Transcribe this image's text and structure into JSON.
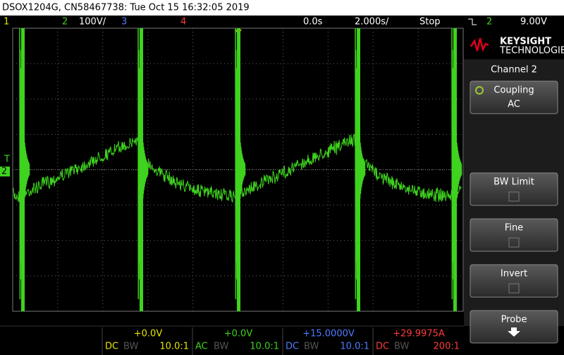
{
  "header": {
    "title": "DSOX1204G, CN58467738: Tue Oct 15 16:32:05 2019"
  },
  "status_bar": {
    "ch1": "1",
    "ch2": "2",
    "ch2_scale": "100V/",
    "ch3": "3",
    "ch4": "4",
    "time_delay": "0.0s",
    "time_scale": "2.000s/",
    "run_state": "Stop",
    "trigger_channel": "2",
    "trigger_level": "9.00V"
  },
  "ground_marker": {
    "trigger": "T",
    "channel": "2"
  },
  "side_panel": {
    "brand": "KEYSIGHT",
    "brand_sub": "TECHNOLOGIES",
    "menu_title": "Channel 2",
    "softkeys": [
      {
        "label": "Coupling",
        "value": "AC"
      },
      {
        "label": "BW Limit"
      },
      {
        "label": "Fine"
      },
      {
        "label": "Invert"
      },
      {
        "label": "Probe"
      }
    ]
  },
  "channels": [
    {
      "offset": "+0.0V",
      "coupling": "DC",
      "bw": "BW",
      "probe": "10.0:1",
      "color": "#e6e600"
    },
    {
      "offset": "+0.0V",
      "coupling": "AC",
      "bw": "BW",
      "probe": "10.0:1",
      "color": "#3fd21f"
    },
    {
      "offset": "+15.0000V",
      "coupling": "DC",
      "bw": "BW",
      "probe": "10.0:1",
      "color": "#4f7cff"
    },
    {
      "offset": "+29.9975A",
      "coupling": "DC",
      "bw": "BW",
      "probe": "200:1",
      "color": "#ff3b3b"
    }
  ]
}
